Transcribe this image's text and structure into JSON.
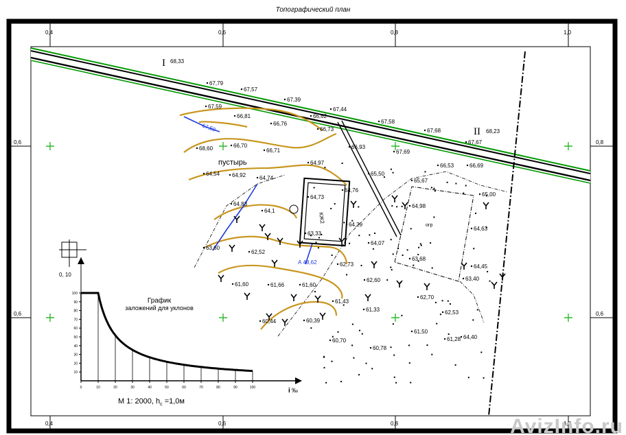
{
  "title": "Топографический план",
  "grid_labels": {
    "top": [
      "0,4",
      "0,6",
      "0,8",
      "1,0"
    ],
    "bottom": [
      "0,4",
      "0,6",
      "0,8",
      "1,0"
    ],
    "left": [
      "0,6",
      "0,6"
    ],
    "right": [
      "0,8",
      "0,6"
    ]
  },
  "benchmarks": [
    {
      "roman": "I",
      "value": "68,33"
    },
    {
      "roman": "II",
      "value": "68,23"
    }
  ],
  "labels": {
    "wasteland": "пустырь",
    "building": "КЖ2",
    "lot": "огр",
    "pit": "А 48,62",
    "corner": "0, 10",
    "scale": "М 1: 2000,  h",
    "scale_sub": "c",
    "scale_rest": " =1,0м",
    "i_axis": "i",
    "i_unit": "‰"
  },
  "elevations": [
    "67,79",
    "67,57",
    "67,59",
    "67,39",
    "67,44",
    "67,58",
    "67,68",
    "67,67",
    "66,81",
    "66,76",
    "66,62",
    "66,73",
    "68,60",
    "66,70",
    "66,71",
    "66,93",
    "67,69",
    "66,53",
    "66,69",
    "64,97",
    "64,54",
    "64,92",
    "64,74",
    "65,50",
    "65,67",
    "64,76",
    "64,73",
    "64,98",
    "64,83",
    "64,1",
    "64,29",
    "63,33",
    "65,00",
    "64,63",
    "63,60",
    "62,52",
    "62,73",
    "64,07",
    "63,68",
    "64,45",
    "61,60",
    "61,66",
    "61,60",
    "62,60",
    "63,40",
    "62,70",
    "61,43",
    "61,33",
    "60,44",
    "60,39",
    "62,53",
    "61,50",
    "61,28",
    "60,70",
    "60,78",
    "64,40"
  ],
  "graph": {
    "title_line1": "График",
    "title_line2": "заложений для уклонов",
    "y_ticks": [
      "100",
      "90",
      "80",
      "70",
      "60",
      "50",
      "40",
      "30",
      "20",
      "10"
    ],
    "x_ticks": [
      "0",
      "10",
      "20",
      "30",
      "40",
      "50",
      "60",
      "70",
      "80",
      "90",
      "100"
    ],
    "y_max": 100,
    "x_max": 100
  },
  "watermark": "AvizInfo.ru",
  "colors": {
    "contour": "#c8961e",
    "road_edge": "#009900",
    "cross": "#2db82d",
    "water": "#1e3cdc",
    "ink": "#000000"
  }
}
